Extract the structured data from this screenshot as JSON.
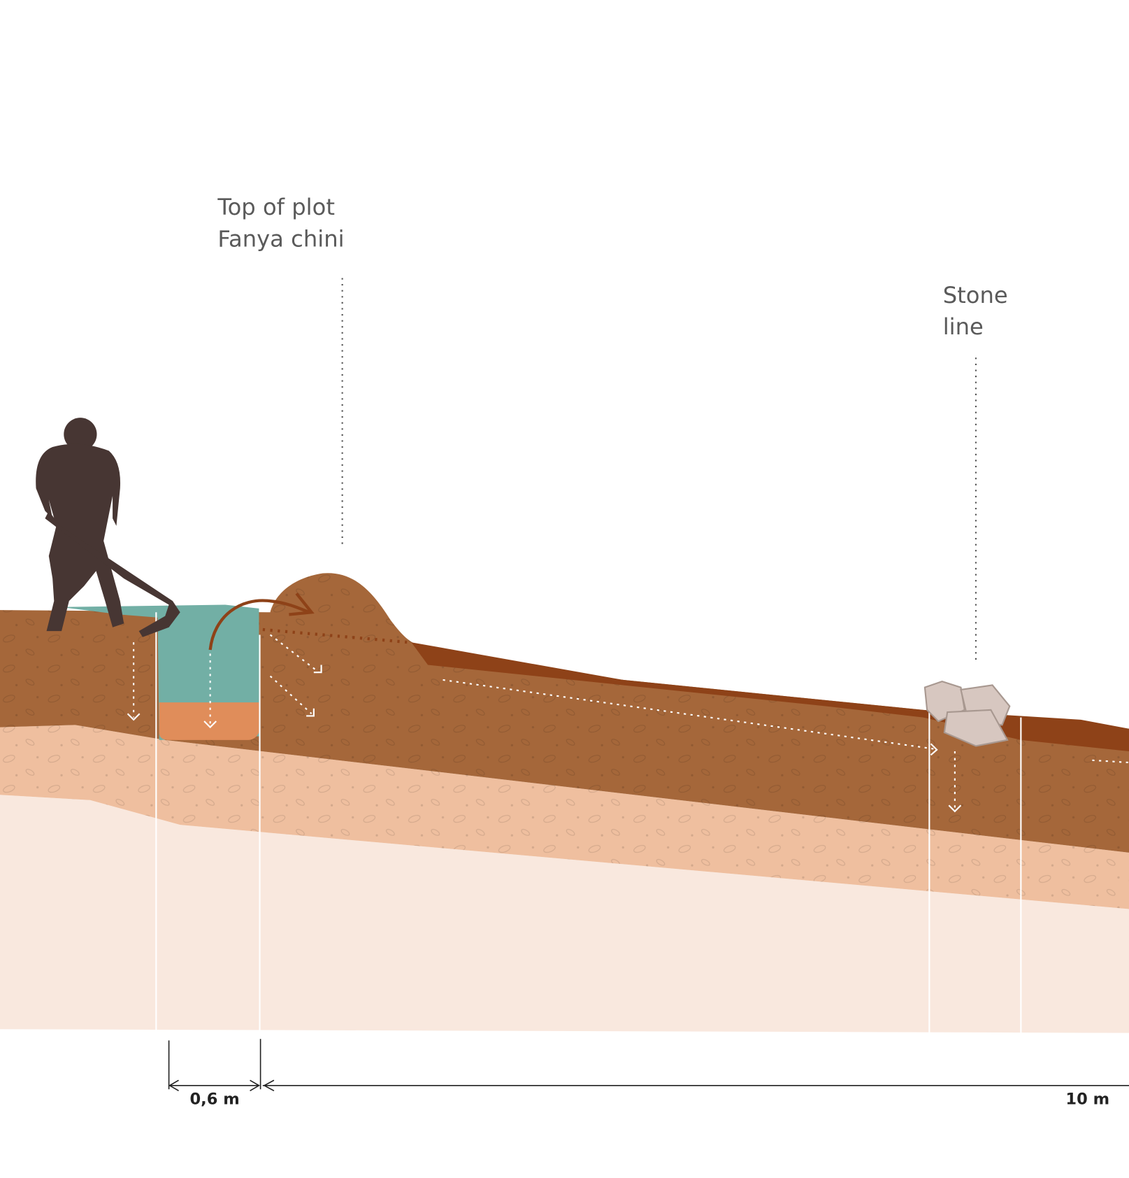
{
  "callouts": [
    {
      "lines": [
        "Top of plot",
        "Fanya chini"
      ]
    },
    {
      "lines": [
        "Stone",
        "line"
      ]
    }
  ],
  "dimensions": [
    "0,6 m",
    "10 m"
  ]
}
